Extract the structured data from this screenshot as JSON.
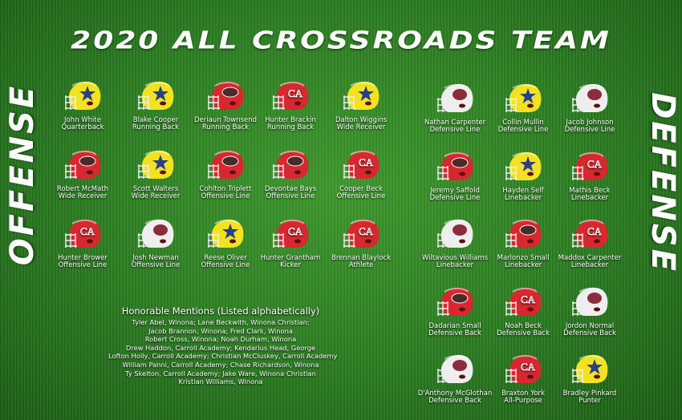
{
  "title": "2020 ALL CROSSROADS TEAM",
  "offense_label": "OFFENSE",
  "defense_label": "DEFENSE",
  "colors": {
    "yellow": "#f2e21f",
    "red": "#d8282f",
    "white": "#eeeeee",
    "star": "#2a3e8c",
    "logo_maroon": "#8a2c3c"
  },
  "offense": [
    {
      "name": "John White",
      "position": "Quarterback",
      "helmet": "yellow-star"
    },
    {
      "name": "Blake Cooper",
      "position": "Running Back",
      "helmet": "yellow-star"
    },
    {
      "name": "Deriaun Townsend",
      "position": "Running Back",
      "helmet": "red-tiger"
    },
    {
      "name": "Hunter Brackin",
      "position": "Running Back",
      "helmet": "red-ca"
    },
    {
      "name": "Dalton Wiggins",
      "position": "Wide Receiver",
      "helmet": "yellow-star"
    },
    {
      "name": "Robert McMath",
      "position": "Wide Receiver",
      "helmet": "red-tiger"
    },
    {
      "name": "Scott Walters",
      "position": "Wide Receiver",
      "helmet": "yellow-star"
    },
    {
      "name": "Cohlton Triplett",
      "position": "Offensive Line",
      "helmet": "red-tiger"
    },
    {
      "name": "Devontae Bays",
      "position": "Offensive Line",
      "helmet": "red-tiger"
    },
    {
      "name": "Cooper Beck",
      "position": "Offensive Line",
      "helmet": "red-ca"
    },
    {
      "name": "Hunter Brower",
      "position": "Offensive Line",
      "helmet": "red-ca"
    },
    {
      "name": "Josh Newman",
      "position": "Offensive Line",
      "helmet": "white-paw"
    },
    {
      "name": "Reese Oliver",
      "position": "Offensive Line",
      "helmet": "yellow-star"
    },
    {
      "name": "Hunter Grantham",
      "position": "Kicker",
      "helmet": "red-ca"
    },
    {
      "name": "Brennan Blaylock",
      "position": "Athlete",
      "helmet": "red-ca"
    }
  ],
  "defense": [
    {
      "name": "Nathan Carpenter",
      "position": "Defensive Line",
      "helmet": "white-paw"
    },
    {
      "name": "Collin Mullin",
      "position": "Defensive Line",
      "helmet": "yellow-star"
    },
    {
      "name": "Jacob Johnson",
      "position": "Defensive Line",
      "helmet": "white-paw"
    },
    {
      "name": "Jeremy Saffold",
      "position": "Defensive Line",
      "helmet": "red-tiger"
    },
    {
      "name": "Hayden Self",
      "position": "Linebacker",
      "helmet": "yellow-star"
    },
    {
      "name": "Mathis Beck",
      "position": "Linebacker",
      "helmet": "red-ca"
    },
    {
      "name": "Wiltavious Williams",
      "position": "Linebacker",
      "helmet": "white-paw"
    },
    {
      "name": "Marlonzo Small",
      "position": "Linebacker",
      "helmet": "red-tiger"
    },
    {
      "name": "Maddox Carpenter",
      "position": "Linebacker",
      "helmet": "red-ca"
    },
    {
      "name": "Dadarian Small",
      "position": "Defensive Back",
      "helmet": "red-tiger"
    },
    {
      "name": "Noah Beck",
      "position": "Defensive Back",
      "helmet": "red-ca"
    },
    {
      "name": "Jordon Normal",
      "position": "Defensive Back",
      "helmet": "white-paw"
    },
    {
      "name": "D'Anthony McGlothan",
      "position": "Defensive Back",
      "helmet": "white-paw"
    },
    {
      "name": "Braxton York",
      "position": "All-Purpose",
      "helmet": "red-ca"
    },
    {
      "name": "Bradley Pinkard",
      "position": "Punter",
      "helmet": "yellow-star"
    }
  ],
  "honorable": {
    "heading": "Honorable Mentions (Listed alphabetically)",
    "lines": [
      "Tyler Abel, Winona;  Lane Beckwith, Winona Christian;",
      "Jacob Brannon, Winona;  Fred Clark, Winona",
      "Robert Cross, Winona;  Noah Durham, Winona",
      "Drew Haddon, Carroll Academy;  Kendarius Head, George",
      "Lofton Holly, Carroll Academy;  Christian McCluskey, Carroll Academy",
      "William Panni, Carroll Academy;  Chase Richardson, Winona",
      "Ty Skelton, Carroll Academy;  Jake Ware, Winona Christian",
      "Kristian Williams, Winona"
    ]
  }
}
